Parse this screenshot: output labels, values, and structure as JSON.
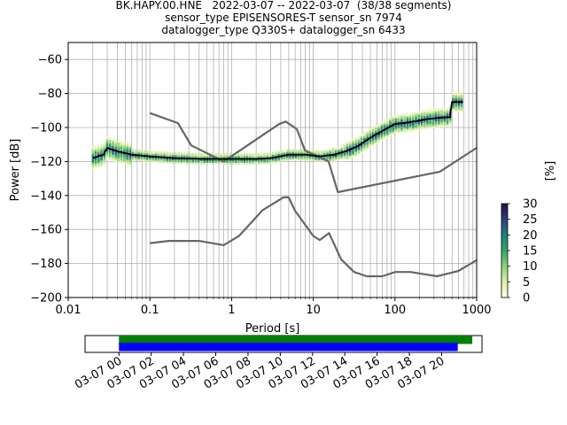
{
  "title": {
    "line1": "BK.HAPY.00.HNE   2022-03-07 -- 2022-03-07  (38/38 segments)",
    "line2": "sensor_type EPISENSORES-T sensor_sn 7974",
    "line3": "datalogger_type Q330S+ datalogger_sn 6433"
  },
  "chart_data": [
    {
      "type": "line",
      "xlabel": "Period [s]",
      "ylabel": "Power [dB]",
      "xscale": "log",
      "xlim": [
        0.01,
        1000
      ],
      "ylim": [
        -200,
        -50
      ],
      "x_ticks": [
        0.01,
        0.1,
        1,
        10,
        100,
        1000
      ],
      "x_tick_labels": [
        "0.01",
        "0.1",
        "1",
        "10",
        "100",
        "1000"
      ],
      "y_ticks": [
        -200,
        -180,
        -160,
        -140,
        -120,
        -100,
        -80,
        -60
      ],
      "y_tick_labels": [
        "−200",
        "−180",
        "−160",
        "−140",
        "−120",
        "−100",
        "−80",
        "−60"
      ],
      "grid": true,
      "series": [
        {
          "role": "high-noise-model",
          "color": "#666666",
          "x": [
            0.1,
            0.22,
            0.32,
            0.8,
            3.8,
            4.6,
            6.3,
            7.9,
            15.4,
            20,
            354.8,
            1000
          ],
          "y": [
            -91.5,
            -97.4,
            -110.5,
            -120,
            -98,
            -96.5,
            -101,
            -113.5,
            -120,
            -138,
            -126,
            -112
          ]
        },
        {
          "role": "low-noise-model",
          "color": "#666666",
          "x": [
            0.1,
            0.17,
            0.4,
            0.8,
            1.24,
            2.4,
            4.3,
            5,
            6,
            10,
            12,
            15.6,
            21.9,
            31.6,
            45,
            70,
            101,
            154,
            328,
            600,
            1000
          ],
          "y": [
            -168,
            -166.7,
            -166.7,
            -169.2,
            -163.7,
            -148.6,
            -141.1,
            -141.1,
            -149,
            -163.8,
            -166.2,
            -162.1,
            -177.5,
            -185,
            -187.5,
            -187.5,
            -185,
            -185,
            -187.5,
            -184.4,
            -178
          ]
        },
        {
          "role": "mode-psd",
          "color": "#000000",
          "x": [
            0.02,
            0.027,
            0.03,
            0.04,
            0.06,
            0.1,
            0.2,
            0.5,
            1,
            2,
            3,
            5,
            8,
            12,
            18,
            25,
            35,
            50,
            70,
            100,
            150,
            250,
            400,
            470,
            500,
            680
          ],
          "y": [
            -118,
            -116,
            -112,
            -114,
            -116,
            -117,
            -118,
            -118.5,
            -118.5,
            -118.5,
            -118,
            -116,
            -116,
            -117,
            -116,
            -114,
            -111,
            -106,
            -102,
            -98,
            -97,
            -95,
            -94,
            -94,
            -85,
            -85
          ]
        }
      ],
      "colorbar": {
        "label": "[%]",
        "ticks": [
          0,
          5,
          10,
          15,
          20,
          25,
          30
        ],
        "range": [
          0,
          30
        ]
      }
    },
    {
      "type": "timeline",
      "tick_labels": [
        "03-07 00",
        "03-07 02",
        "03-07 04",
        "03-07 06",
        "03-07 08",
        "03-07 10",
        "03-07 12",
        "03-07 14",
        "03-07 16",
        "03-07 18",
        "03-07 20"
      ],
      "tick_hours": [
        0,
        2,
        4,
        6,
        8,
        10,
        12,
        14,
        16,
        18,
        20
      ],
      "xlim_hours": [
        -2.1,
        22.5
      ],
      "bars": [
        {
          "color": "#008000",
          "start_hour": 0,
          "end_hour": 21.9
        },
        {
          "color": "#0000ff",
          "start_hour": 0,
          "end_hour": 21.0
        }
      ]
    }
  ]
}
